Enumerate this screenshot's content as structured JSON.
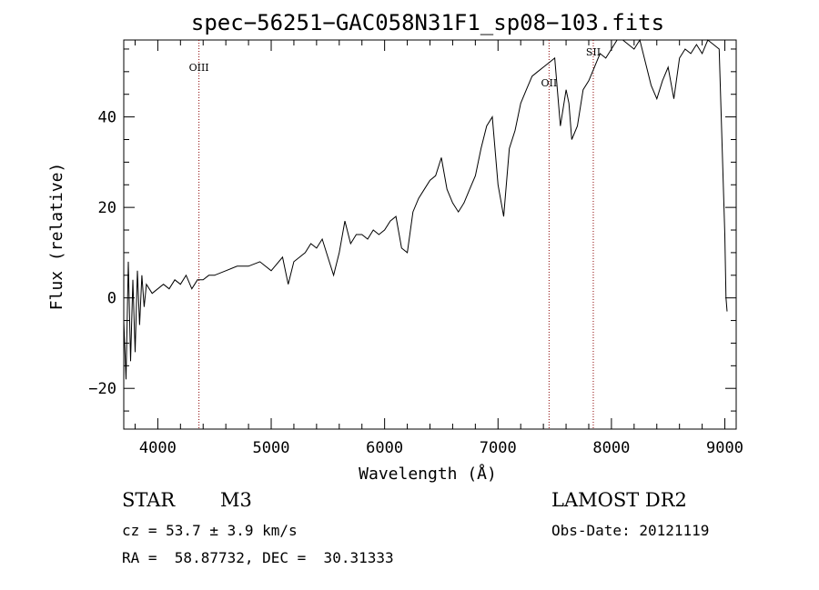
{
  "chart_data": {
    "type": "line",
    "title": "spec−56251−GAC058N31F1_sp08−103.fits",
    "xlabel": "Wavelength (Å)",
    "ylabel": "Flux (relative)",
    "xlim": [
      3700,
      9100
    ],
    "ylim": [
      -29,
      57
    ],
    "x_ticks": [
      4000,
      5000,
      6000,
      7000,
      8000,
      9000
    ],
    "x_tick_labels": [
      "4000",
      "5000",
      "6000",
      "7000",
      "8000",
      "9000"
    ],
    "y_ticks": [
      -20,
      0,
      20,
      40
    ],
    "y_tick_labels": [
      "−20",
      "0",
      "20",
      "40"
    ],
    "grid": false,
    "series": [
      {
        "x": [
          3700,
          3720,
          3740,
          3760,
          3780,
          3800,
          3820,
          3840,
          3860,
          3880,
          3900,
          3950,
          4000,
          4050,
          4100,
          4150,
          4200,
          4250,
          4300,
          4350,
          4400,
          4450,
          4500,
          4600,
          4700,
          4800,
          4900,
          5000,
          5100,
          5150,
          5200,
          5250,
          5300,
          5350,
          5400,
          5450,
          5500,
          5550,
          5600,
          5650,
          5700,
          5750,
          5800,
          5850,
          5900,
          5950,
          6000,
          6050,
          6100,
          6150,
          6200,
          6250,
          6300,
          6350,
          6400,
          6450,
          6500,
          6550,
          6600,
          6650,
          6700,
          6750,
          6800,
          6850,
          6900,
          6950,
          7000,
          7050,
          7100,
          7150,
          7200,
          7250,
          7300,
          7350,
          7400,
          7450,
          7500,
          7550,
          7600,
          7625,
          7650,
          7700,
          7750,
          7800,
          7850,
          7900,
          7950,
          8000,
          8050,
          8100,
          8150,
          8200,
          8250,
          8300,
          8350,
          8400,
          8450,
          8500,
          8550,
          8600,
          8650,
          8700,
          8750,
          8800,
          8850,
          8900,
          8950,
          9000,
          9010,
          9020
        ],
        "y": [
          -5,
          -18,
          8,
          -14,
          4,
          -12,
          6,
          -6,
          5,
          -2,
          3,
          1,
          2,
          3,
          2,
          4,
          3,
          5,
          2,
          4,
          4,
          5,
          5,
          6,
          7,
          7,
          8,
          6,
          9,
          3,
          8,
          9,
          10,
          12,
          11,
          13,
          9,
          5,
          10,
          17,
          12,
          14,
          14,
          13,
          15,
          14,
          15,
          17,
          18,
          11,
          10,
          19,
          22,
          24,
          26,
          27,
          31,
          24,
          21,
          19,
          21,
          24,
          27,
          33,
          38,
          40,
          25,
          18,
          33,
          37,
          43,
          46,
          49,
          50,
          51,
          52,
          53,
          38,
          46,
          43,
          35,
          38,
          46,
          48,
          51,
          54,
          53,
          55,
          57,
          57,
          56,
          55,
          57,
          52,
          47,
          44,
          48,
          51,
          44,
          53,
          55,
          54,
          56,
          54,
          57,
          56,
          55,
          14,
          0,
          -3
        ]
      }
    ],
    "emission_lines": [
      {
        "label": "OIII",
        "x": 4363
      },
      {
        "label": "OII",
        "x": 7450
      },
      {
        "label": "SII",
        "x": 7840
      }
    ],
    "line_color": "#8b0000"
  },
  "info": {
    "object_type": "STAR",
    "subclass": "M3",
    "survey": "LAMOST DR2",
    "cz": "cz = 53.7 ± 3.9 km/s",
    "obs_date": "Obs-Date: 20121119",
    "coords": "RA =  58.87732, DEC =  30.31333"
  }
}
